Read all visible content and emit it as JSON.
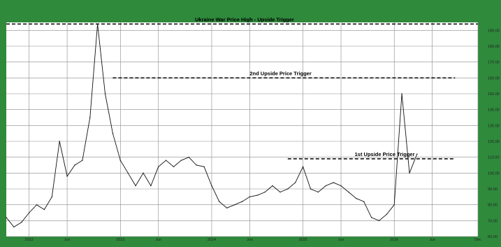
{
  "colors": {
    "frame": "#2f8a3c",
    "plot_bg": "#ffffff",
    "grid": "#8a8a8a",
    "line": "#111111",
    "dash": "#111111"
  },
  "chart_data": {
    "type": "line",
    "title": "",
    "xlabel": "",
    "ylabel": "",
    "ylim": [
      60,
      195
    ],
    "grid": true,
    "y_axis_side": "right",
    "x_ticks": [
      "2022",
      "Jun",
      "2023",
      "Jun",
      "2024",
      "Jun",
      "2025",
      "Jun",
      "2026",
      "Jun",
      "Dec"
    ],
    "y_ticks": [
      "60.00",
      "70.00",
      "80.00",
      "90.00",
      "100.00",
      "110.00",
      "120.00",
      "130.00",
      "140.00",
      "150.00",
      "160.00",
      "170.00",
      "180.00",
      "190.00"
    ],
    "y_tick_values": [
      60,
      70,
      80,
      90,
      100,
      110,
      120,
      130,
      140,
      150,
      160,
      170,
      180,
      190
    ],
    "x_range": [
      "2021-10",
      "2026-12"
    ],
    "series": [
      {
        "values": [
          [
            "2021-10",
            72
          ],
          [
            "2021-11",
            66
          ],
          [
            "2021-12",
            69
          ],
          [
            "2022-01",
            75
          ],
          [
            "2022-02",
            80
          ],
          [
            "2022-03",
            77
          ],
          [
            "2022-04",
            85
          ],
          [
            "2022-05",
            120
          ],
          [
            "2022-06",
            98
          ],
          [
            "2022-07",
            105
          ],
          [
            "2022-08",
            108
          ],
          [
            "2022-09",
            135
          ],
          [
            "2022-10",
            194
          ],
          [
            "2022-11",
            150
          ],
          [
            "2022-12",
            125
          ],
          [
            "2023-01",
            108
          ],
          [
            "2023-02",
            100
          ],
          [
            "2023-03",
            92
          ],
          [
            "2023-04",
            100
          ],
          [
            "2023-05",
            92
          ],
          [
            "2023-06",
            104
          ],
          [
            "2023-07",
            108
          ],
          [
            "2023-08",
            104
          ],
          [
            "2023-09",
            108
          ],
          [
            "2023-10",
            110
          ],
          [
            "2023-11",
            105
          ],
          [
            "2023-12",
            104
          ],
          [
            "2024-01",
            92
          ],
          [
            "2024-02",
            82
          ],
          [
            "2024-03",
            78
          ],
          [
            "2024-04",
            80
          ],
          [
            "2024-05",
            82
          ],
          [
            "2024-06",
            85
          ],
          [
            "2024-07",
            86
          ],
          [
            "2024-08",
            88
          ],
          [
            "2024-09",
            92
          ],
          [
            "2024-10",
            88
          ],
          [
            "2024-11",
            90
          ],
          [
            "2024-12",
            94
          ],
          [
            "2025-01",
            104
          ],
          [
            "2025-02",
            90
          ],
          [
            "2025-03",
            88
          ],
          [
            "2025-04",
            92
          ],
          [
            "2025-05",
            94
          ],
          [
            "2025-06",
            92
          ],
          [
            "2025-07",
            88
          ],
          [
            "2025-08",
            84
          ],
          [
            "2025-09",
            82
          ],
          [
            "2025-10",
            72
          ],
          [
            "2025-11",
            70
          ],
          [
            "2025-12",
            74
          ],
          [
            "2026-01",
            80
          ],
          [
            "2026-02",
            150
          ],
          [
            "2026-03",
            100
          ],
          [
            "2026-04",
            112
          ]
        ]
      }
    ],
    "annotations": [
      {
        "text": "Ukraine War Price High - Upside Trigger",
        "y": 194,
        "x_start": "2021-10",
        "x_end": "2026-12"
      },
      {
        "text": "2nd Upside Price Trigger",
        "y": 160,
        "x_start": "2022-12",
        "x_end": "2026-09"
      },
      {
        "text": "1st Upside Price Trigger",
        "y": 109,
        "x_start": "2024-11",
        "x_end": "2026-09"
      }
    ]
  }
}
